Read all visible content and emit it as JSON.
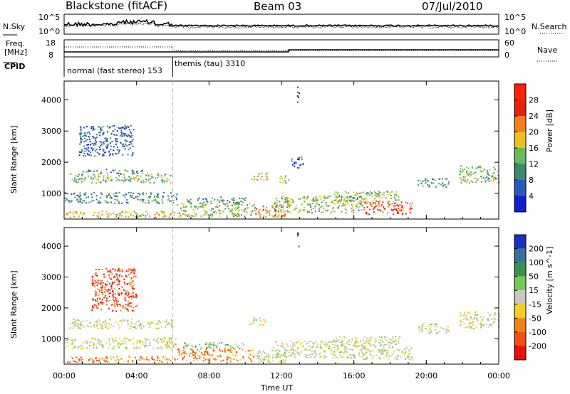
{
  "header": {
    "station": "Blackstone (fitACF)",
    "beam": "Beam 03",
    "date": "07/Jul/2010"
  },
  "top_panel": {
    "left_label": "N.Sky",
    "left_ticks": [
      "10^5",
      "10^0"
    ],
    "right_ticks": [
      "10^5",
      "10^0"
    ],
    "right_label": "N.Search",
    "freq_label": "Freq.",
    "freq_unit": "[MHz]",
    "freq_ticks": [
      "18",
      "8"
    ],
    "nave_ticks": [
      "60",
      "0"
    ],
    "nave_label": "Nave",
    "cpid_label": "CPID",
    "modes": [
      {
        "text": "normal (fast stereo) 153",
        "start_hour": 0
      },
      {
        "text": "themis (tau) 3310",
        "start_hour": 6
      }
    ]
  },
  "chart_data": [
    {
      "type": "heatmap",
      "name": "power",
      "xlabel": "Time UT",
      "ylabel": "Slant Range [km]",
      "xlim": [
        0,
        24
      ],
      "ylim": [
        180,
        4600
      ],
      "x_ticks": [
        0,
        4,
        8,
        12,
        16,
        20,
        24
      ],
      "x_tick_labels": [
        "00:00",
        "04:00",
        "08:00",
        "12:00",
        "16:00",
        "20:00",
        "00:00"
      ],
      "y_ticks": [
        1000,
        2000,
        3000,
        4000
      ],
      "y_tick_labels": [
        "1000",
        "2000",
        "3000",
        "4000"
      ],
      "colorbar": {
        "label": "Power [dB]",
        "ticks": [
          "4",
          "8",
          "12",
          "16",
          "20",
          "24",
          "28"
        ],
        "colors": [
          "#1020d0",
          "#2a5ab8",
          "#3a8a6a",
          "#6ab85a",
          "#e8c020",
          "#f08018",
          "#e82010",
          "#ff2000"
        ]
      },
      "regions": [
        {
          "t": [
            0.3,
            6
          ],
          "r": [
            1350,
            1650
          ],
          "level": 3
        },
        {
          "t": [
            1,
            4.5
          ],
          "r": [
            1650,
            1800
          ],
          "level": 2
        },
        {
          "t": [
            0,
            6.2
          ],
          "r": [
            700,
            1050
          ],
          "level": 2
        },
        {
          "t": [
            0,
            6.2
          ],
          "r": [
            250,
            450
          ],
          "level": 4
        },
        {
          "t": [
            6.2,
            10.5
          ],
          "r": [
            280,
            700
          ],
          "level": 3
        },
        {
          "t": [
            6.5,
            10
          ],
          "r": [
            700,
            900
          ],
          "level": 2
        },
        {
          "t": [
            10.5,
            12.2
          ],
          "r": [
            250,
            650
          ],
          "level": 5
        },
        {
          "t": [
            10.2,
            11.2
          ],
          "r": [
            1450,
            1700
          ],
          "level": 4
        },
        {
          "t": [
            11.8,
            12.4
          ],
          "r": [
            1350,
            1600
          ],
          "level": 3
        },
        {
          "t": [
            11.5,
            16.5
          ],
          "r": [
            400,
            950
          ],
          "level": 3
        },
        {
          "t": [
            14.8,
            18.5
          ],
          "r": [
            750,
            1100
          ],
          "level": 3
        },
        {
          "t": [
            16.5,
            19.2
          ],
          "r": [
            350,
            750
          ],
          "level": 6
        },
        {
          "t": [
            19.5,
            21.2
          ],
          "r": [
            1200,
            1500
          ],
          "level": 2
        },
        {
          "t": [
            21.8,
            24
          ],
          "r": [
            1350,
            1900
          ],
          "level": 3
        },
        {
          "t": [
            0.8,
            3.8
          ],
          "r": [
            2200,
            3200
          ],
          "level": 1
        },
        {
          "t": [
            12.5,
            13.2
          ],
          "r": [
            1800,
            2200
          ],
          "level": 1
        },
        {
          "t": [
            12.85,
            12.95
          ],
          "r": [
            3900,
            4500
          ],
          "level": 0
        }
      ]
    },
    {
      "type": "heatmap",
      "name": "velocity",
      "xlabel": "Time UT",
      "ylabel": "Slant Range [km]",
      "xlim": [
        0,
        24
      ],
      "ylim": [
        180,
        4600
      ],
      "x_ticks": [
        0,
        4,
        8,
        12,
        16,
        20,
        24
      ],
      "x_tick_labels": [
        "00:00",
        "04:00",
        "08:00",
        "12:00",
        "16:00",
        "20:00",
        "00:00"
      ],
      "y_ticks": [
        1000,
        2000,
        3000,
        4000
      ],
      "y_tick_labels": [
        "1000",
        "2000",
        "3000",
        "4000"
      ],
      "colorbar": {
        "label": "Velocity [m s^-1]",
        "ticks": [
          "200",
          "100",
          "50",
          "15",
          "-15",
          "-50",
          "-100",
          "-200"
        ],
        "colors": [
          "#1a30c0",
          "#3a70a0",
          "#3a9050",
          "#78c850",
          "#c8c8c0",
          "#f0d020",
          "#f08018",
          "#f05010",
          "#e81010"
        ]
      },
      "regions": [
        {
          "t": [
            0.3,
            6
          ],
          "r": [
            1350,
            1650
          ],
          "level": 4
        },
        {
          "t": [
            0,
            6.2
          ],
          "r": [
            700,
            1050
          ],
          "level": 4
        },
        {
          "t": [
            0,
            6.2
          ],
          "r": [
            250,
            450
          ],
          "level": 6
        },
        {
          "t": [
            6.2,
            10.5
          ],
          "r": [
            280,
            700
          ],
          "level": 6
        },
        {
          "t": [
            6.5,
            10
          ],
          "r": [
            700,
            900
          ],
          "level": 3
        },
        {
          "t": [
            10.5,
            12.2
          ],
          "r": [
            250,
            650
          ],
          "level": 4
        },
        {
          "t": [
            10.2,
            11.2
          ],
          "r": [
            1450,
            1700
          ],
          "level": 4
        },
        {
          "t": [
            11.5,
            16.5
          ],
          "r": [
            400,
            950
          ],
          "level": 4
        },
        {
          "t": [
            14.8,
            18.5
          ],
          "r": [
            750,
            1100
          ],
          "level": 4
        },
        {
          "t": [
            16.5,
            19.2
          ],
          "r": [
            350,
            750
          ],
          "level": 4
        },
        {
          "t": [
            19.5,
            21.2
          ],
          "r": [
            1200,
            1500
          ],
          "level": 4
        },
        {
          "t": [
            21.8,
            24
          ],
          "r": [
            1350,
            1900
          ],
          "level": 4
        },
        {
          "t": [
            1.5,
            4
          ],
          "r": [
            1900,
            3300
          ],
          "level": 7
        },
        {
          "t": [
            12.85,
            12.95
          ],
          "r": [
            3900,
            4500
          ],
          "level": 0
        }
      ]
    }
  ]
}
